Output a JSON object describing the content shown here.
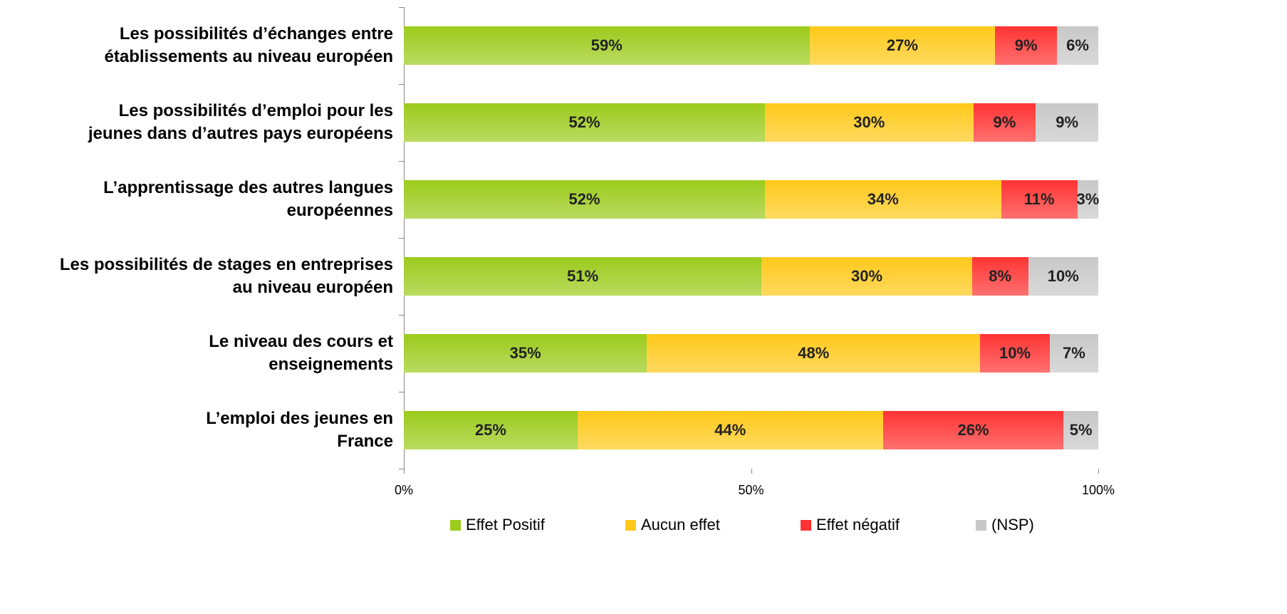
{
  "chart_data": {
    "type": "bar",
    "orientation": "horizontal",
    "stacked": "percent",
    "categories": [
      "Les possibilités d’échanges entre\nétablissements au niveau européen",
      "Les possibilités d’emploi pour les\njeunes dans d’autres pays européens",
      "L’apprentissage des autres langues\neuropéennes",
      "Les possibilités de stages en entreprises\nau niveau européen",
      "Le niveau des cours et\nenseignements",
      "L’emploi des jeunes en\nFrance"
    ],
    "series": [
      {
        "name": "Effet Positif",
        "color": "#9ccb1c",
        "values": [
          59,
          52,
          52,
          51,
          35,
          25
        ],
        "value_labels": [
          "59%",
          "52%",
          "52%",
          "51%",
          "35%",
          "25%"
        ]
      },
      {
        "name": "Aucun effet",
        "color": "#ffc91a",
        "values": [
          27,
          30,
          34,
          30,
          48,
          44
        ],
        "value_labels": [
          "27%",
          "30%",
          "34%",
          "30%",
          "48%",
          "44%"
        ]
      },
      {
        "name": "Effet négatif",
        "color": "#ff3333",
        "values": [
          9,
          9,
          11,
          8,
          10,
          26
        ],
        "value_labels": [
          "9%",
          "9%",
          "11%",
          "8%",
          "10%",
          "26%"
        ]
      },
      {
        "name": "(NSP)",
        "color": "#c8c8c8",
        "values": [
          6,
          9,
          3,
          10,
          7,
          5
        ],
        "value_labels": [
          "6%",
          "9%",
          "3%",
          "10%",
          "7%",
          "5%"
        ]
      }
    ],
    "xlim": [
      0,
      100
    ],
    "xticks": [
      {
        "value": 0,
        "label": "0%"
      },
      {
        "value": 50,
        "label": "50%"
      },
      {
        "value": 100,
        "label": "100%"
      }
    ],
    "legend": "bottom"
  }
}
